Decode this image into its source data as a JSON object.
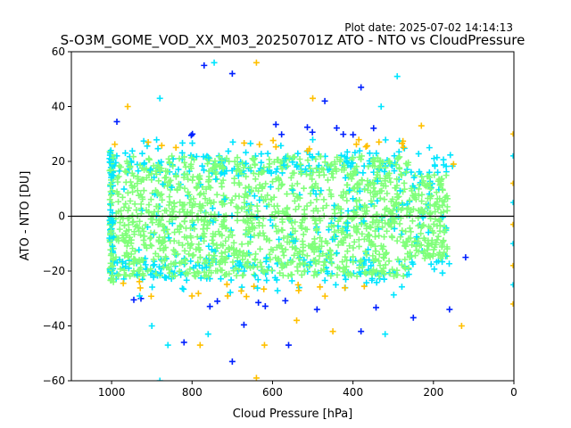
{
  "chart_data": {
    "type": "scatter",
    "title": "S-O3M_GOME_VOD_XX_M03_20250701Z ATO - NTO vs CloudPressure",
    "plot_date": "Plot date: 2025-07-02 14:14:13",
    "xlabel": "Cloud Pressure [hPa]",
    "ylabel": "ATO - NTO [DU]",
    "xlim": [
      1100,
      0
    ],
    "ylim": [
      -60,
      60
    ],
    "x_inverted": true,
    "xticks": [
      1000,
      800,
      600,
      400,
      200,
      0
    ],
    "yticks": [
      -60,
      -40,
      -20,
      0,
      20,
      40,
      60
    ],
    "reference_line_y": 0,
    "marker": "+",
    "grid": false,
    "colormap": "jet",
    "colors": {
      "core": "#80ff7a",
      "mid": "#00e5ff",
      "outer": "#ffc000",
      "edge": "#0020ff"
    },
    "cloud_pressure_data_range": [
      1000,
      150
    ],
    "bulk_spread_approx": [
      -28,
      28
    ],
    "point_count_displayed": 1600,
    "outliers": [
      {
        "x": 770,
        "y": 55
      },
      {
        "x": 745,
        "y": 56
      },
      {
        "x": 640,
        "y": 56
      },
      {
        "x": 700,
        "y": 52
      },
      {
        "x": 880,
        "y": 43
      },
      {
        "x": 960,
        "y": 40
      },
      {
        "x": 380,
        "y": 47
      },
      {
        "x": 290,
        "y": 51
      },
      {
        "x": 500,
        "y": 43
      },
      {
        "x": 470,
        "y": 42
      },
      {
        "x": 330,
        "y": 40
      },
      {
        "x": 640,
        "y": -59
      },
      {
        "x": 700,
        "y": -53
      },
      {
        "x": 860,
        "y": -47
      },
      {
        "x": 780,
        "y": -47
      },
      {
        "x": 820,
        "y": -46
      },
      {
        "x": 760,
        "y": -43
      },
      {
        "x": 620,
        "y": -47
      },
      {
        "x": 560,
        "y": -47
      },
      {
        "x": 900,
        "y": -40
      },
      {
        "x": 450,
        "y": -42
      },
      {
        "x": 380,
        "y": -42
      },
      {
        "x": 320,
        "y": -43
      },
      {
        "x": 130,
        "y": -40
      },
      {
        "x": 160,
        "y": -34
      },
      {
        "x": 880,
        "y": -60
      },
      {
        "x": 540,
        "y": -38
      },
      {
        "x": 250,
        "y": -37
      },
      {
        "x": 1005,
        "y": -8
      },
      {
        "x": 150,
        "y": 19
      },
      {
        "x": 120,
        "y": -15
      },
      {
        "x": 210,
        "y": 25
      },
      {
        "x": 230,
        "y": 33
      }
    ],
    "right_edge_points": [
      {
        "x": 2,
        "y": 30
      },
      {
        "x": 2,
        "y": 22
      },
      {
        "x": 2,
        "y": 12
      },
      {
        "x": 2,
        "y": 5
      },
      {
        "x": 2,
        "y": -3
      },
      {
        "x": 2,
        "y": -10
      },
      {
        "x": 2,
        "y": -18
      },
      {
        "x": 2,
        "y": -25
      },
      {
        "x": 2,
        "y": -32
      }
    ]
  }
}
